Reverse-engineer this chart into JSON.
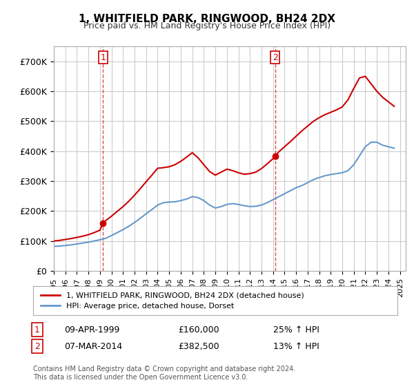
{
  "title": "1, WHITFIELD PARK, RINGWOOD, BH24 2DX",
  "subtitle": "Price paid vs. HM Land Registry's House Price Index (HPI)",
  "xlabel": "",
  "ylabel": "",
  "ylim": [
    0,
    750000
  ],
  "yticks": [
    0,
    100000,
    200000,
    300000,
    400000,
    500000,
    600000,
    700000
  ],
  "ytick_labels": [
    "£0",
    "£100K",
    "£200K",
    "£300K",
    "£400K",
    "£500K",
    "£600K",
    "£700K"
  ],
  "background_color": "#ffffff",
  "grid_color": "#cccccc",
  "sale1_year": 1999.27,
  "sale1_price": 160000,
  "sale1_label": "1",
  "sale1_date": "09-APR-1999",
  "sale1_pct": "25%",
  "sale2_year": 2014.18,
  "sale2_price": 382500,
  "sale2_label": "2",
  "sale2_date": "07-MAR-2014",
  "sale2_pct": "13%",
  "red_color": "#cc0000",
  "blue_color": "#6699cc",
  "annotation_box_color": "#cc0000",
  "hpi_line": {
    "years": [
      1995,
      1995.5,
      1996,
      1996.5,
      1997,
      1997.5,
      1998,
      1998.5,
      1999,
      1999.5,
      2000,
      2000.5,
      2001,
      2001.5,
      2002,
      2002.5,
      2003,
      2003.5,
      2004,
      2004.5,
      2005,
      2005.5,
      2006,
      2006.5,
      2007,
      2007.5,
      2008,
      2008.5,
      2009,
      2009.5,
      2010,
      2010.5,
      2011,
      2011.5,
      2012,
      2012.5,
      2013,
      2013.5,
      2014,
      2014.5,
      2015,
      2015.5,
      2016,
      2016.5,
      2017,
      2017.5,
      2018,
      2018.5,
      2019,
      2019.5,
      2020,
      2020.5,
      2021,
      2021.5,
      2022,
      2022.5,
      2023,
      2023.5,
      2024,
      2024.5
    ],
    "values": [
      82000,
      83000,
      85000,
      87000,
      90000,
      93000,
      96000,
      100000,
      104000,
      109000,
      118000,
      128000,
      138000,
      149000,
      162000,
      176000,
      191000,
      205000,
      220000,
      228000,
      230000,
      231000,
      235000,
      240000,
      248000,
      245000,
      235000,
      220000,
      210000,
      215000,
      222000,
      225000,
      222000,
      218000,
      215000,
      216000,
      220000,
      228000,
      238000,
      248000,
      258000,
      268000,
      278000,
      285000,
      295000,
      305000,
      312000,
      318000,
      322000,
      325000,
      328000,
      335000,
      355000,
      385000,
      415000,
      430000,
      430000,
      420000,
      415000,
      410000
    ]
  },
  "property_line": {
    "years": [
      1995,
      1995.5,
      1996,
      1996.5,
      1997,
      1997.5,
      1998,
      1998.5,
      1999,
      1999.27,
      1999.5,
      2000,
      2000.5,
      2001,
      2001.5,
      2002,
      2002.5,
      2003,
      2003.5,
      2004,
      2004.5,
      2005,
      2005.5,
      2006,
      2006.5,
      2007,
      2007.5,
      2008,
      2008.5,
      2009,
      2009.5,
      2010,
      2010.5,
      2011,
      2011.5,
      2012,
      2012.5,
      2013,
      2013.5,
      2014,
      2014.18,
      2014.5,
      2015,
      2015.5,
      2016,
      2016.5,
      2017,
      2017.5,
      2018,
      2018.5,
      2019,
      2019.5,
      2020,
      2020.5,
      2021,
      2021.5,
      2022,
      2022.5,
      2023,
      2023.5,
      2024,
      2024.5
    ],
    "values": [
      100000,
      102000,
      105000,
      108000,
      112000,
      116000,
      121000,
      128000,
      136000,
      160000,
      168000,
      183000,
      199000,
      215000,
      233000,
      253000,
      275000,
      298000,
      320000,
      343000,
      345000,
      348000,
      355000,
      366000,
      380000,
      395000,
      378000,
      355000,
      332000,
      320000,
      330000,
      340000,
      335000,
      328000,
      323000,
      325000,
      330000,
      342000,
      358000,
      375000,
      382500,
      398000,
      415000,
      432000,
      450000,
      468000,
      484000,
      500000,
      512000,
      522000,
      530000,
      538000,
      548000,
      572000,
      610000,
      645000,
      650000,
      625000,
      600000,
      580000,
      565000,
      550000
    ]
  },
  "legend_line1": "1, WHITFIELD PARK, RINGWOOD, BH24 2DX (detached house)",
  "legend_line2": "HPI: Average price, detached house, Dorset",
  "footer": "Contains HM Land Registry data © Crown copyright and database right 2024.\nThis data is licensed under the Open Government Licence v3.0.",
  "xtick_years": [
    1995,
    1996,
    1997,
    1998,
    1999,
    2000,
    2001,
    2002,
    2003,
    2004,
    2005,
    2006,
    2007,
    2008,
    2009,
    2010,
    2011,
    2012,
    2013,
    2014,
    2015,
    2016,
    2017,
    2018,
    2019,
    2020,
    2021,
    2022,
    2023,
    2024,
    2025
  ]
}
